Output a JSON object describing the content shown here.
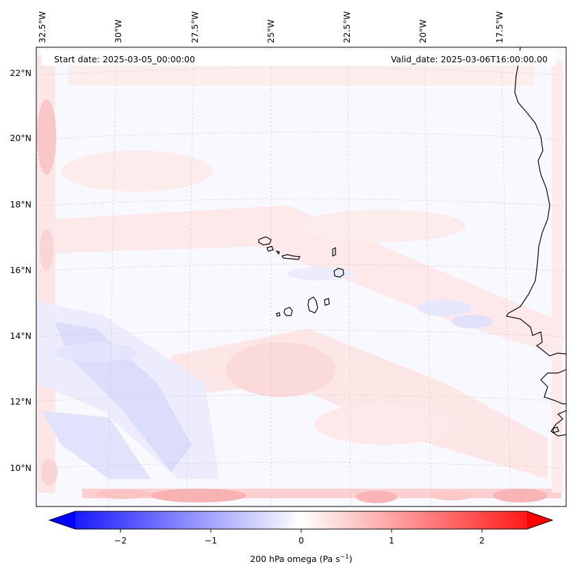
{
  "header": {
    "start_date": "Start date: 2025-03-05_00:00:00",
    "valid_date": "Valid_date: 2025-03-06T16:00:00.00"
  },
  "lon_labels": [
    "32.5°W",
    "30°W",
    "27.5°W",
    "25°W",
    "22.5°W",
    "20°W",
    "17.5°W"
  ],
  "lat_labels": [
    "22°N",
    "20°N",
    "18°N",
    "16°N",
    "14°N",
    "12°N",
    "10°N"
  ],
  "colorbar": {
    "ticks": [
      "−2",
      "−1",
      "0",
      "1",
      "2"
    ],
    "tick_values": [
      -2,
      -1,
      0,
      1,
      2
    ],
    "range": [
      -2.6,
      2.6
    ],
    "label_prefix": "200 hPa omega (Pa s",
    "label_sup": "−1",
    "label_suffix": ")",
    "low_color": "#0000ff",
    "mid_color": "#ffffff",
    "high_color": "#ff0000"
  },
  "map": {
    "ocean_base_color": "#f8f8ff",
    "coastline_color": "#000000",
    "gridline_color": "#c8c8c8"
  }
}
